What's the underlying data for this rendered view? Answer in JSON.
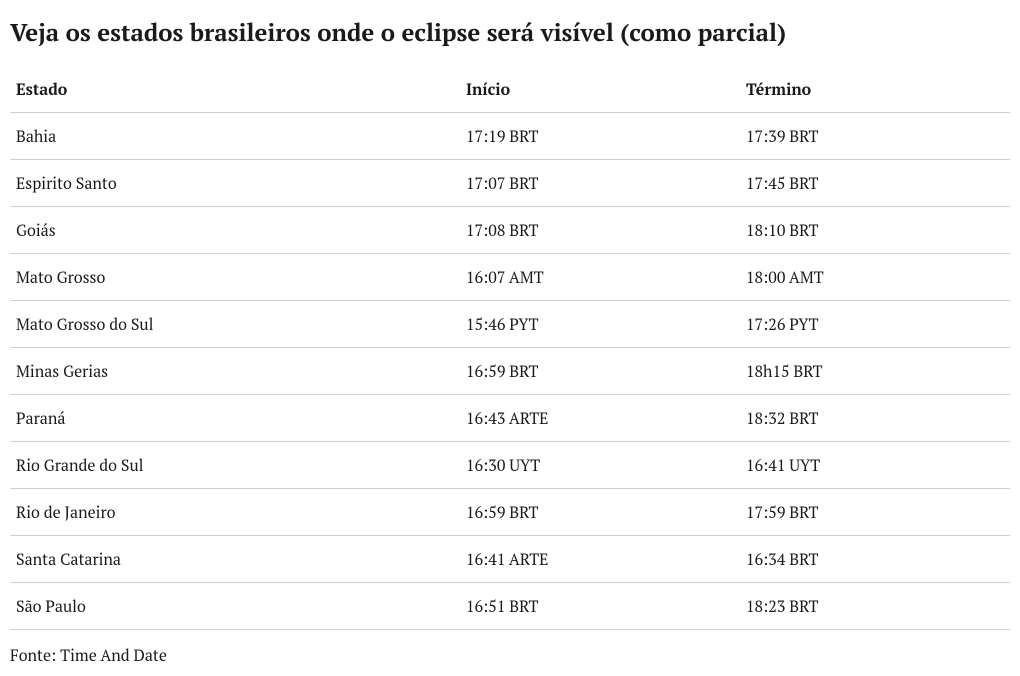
{
  "title": "Veja os estados brasileiros onde o eclipse será visível (como parcial)",
  "columns": {
    "estado": "Estado",
    "inicio": "Início",
    "termino": "Término"
  },
  "rows": [
    {
      "estado": "Bahia",
      "inicio": "17:19 BRT",
      "termino": "17:39 BRT"
    },
    {
      "estado": "Espirito Santo",
      "inicio": "17:07 BRT",
      "termino": "17:45 BRT"
    },
    {
      "estado": "Goiás",
      "inicio": "17:08 BRT",
      "termino": "18:10 BRT"
    },
    {
      "estado": "Mato Grosso",
      "inicio": "16:07 AMT",
      "termino": "18:00 AMT"
    },
    {
      "estado": "Mato Grosso do Sul",
      "inicio": "15:46 PYT",
      "termino": "17:26 PYT"
    },
    {
      "estado": "Minas Gerias",
      "inicio": "16:59 BRT",
      "termino": "18h15 BRT"
    },
    {
      "estado": "Paraná",
      "inicio": "16:43 ARTE",
      "termino": "18:32 BRT"
    },
    {
      "estado": "Rio Grande do Sul",
      "inicio": "16:30 UYT",
      "termino": "16:41 UYT"
    },
    {
      "estado": "Rio de Janeiro",
      "inicio": "16:59 BRT",
      "termino": "17:59 BRT"
    },
    {
      "estado": "Santa Catarina",
      "inicio": "16:41 ARTE",
      "termino": "16:34 BRT"
    },
    {
      "estado": "São Paulo",
      "inicio": "16:51 BRT",
      "termino": "18:23 BRT"
    }
  ],
  "source": "Fonte: Time And Date"
}
